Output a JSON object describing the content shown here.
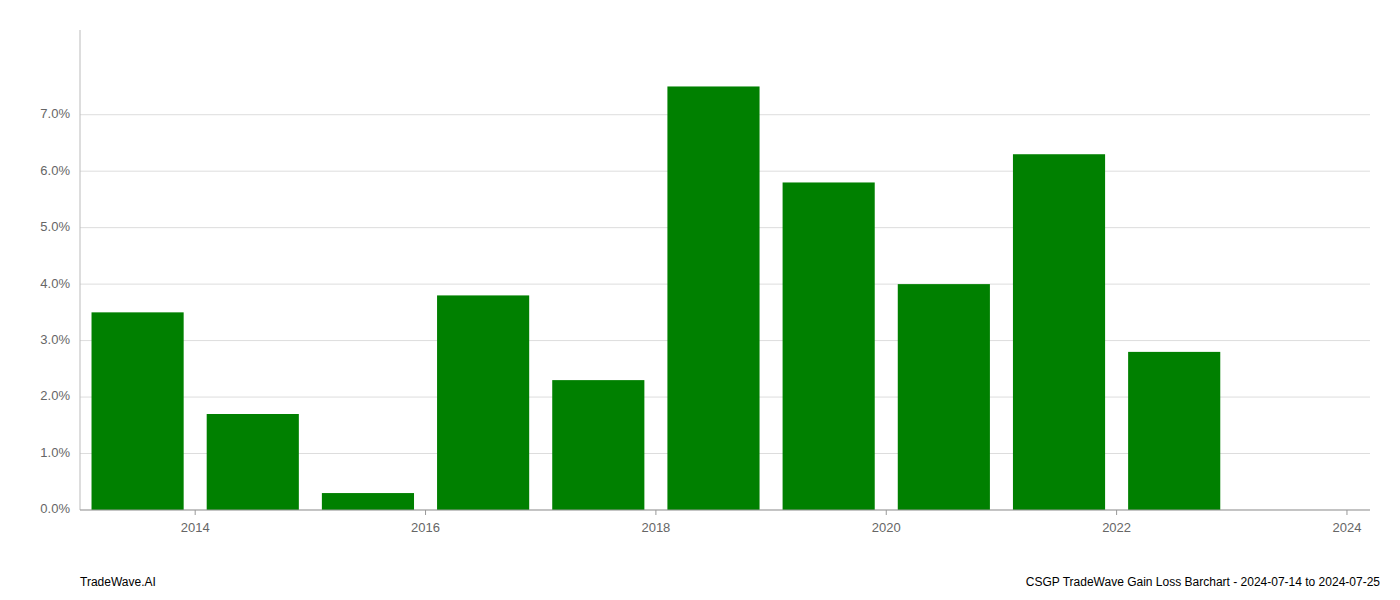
{
  "chart_data": {
    "type": "bar",
    "x": [
      2013.5,
      2014.5,
      2015.5,
      2016.5,
      2017.5,
      2018.5,
      2019.5,
      2020.5,
      2021.5,
      2022.5,
      2023.5
    ],
    "values": [
      0.035,
      0.017,
      0.003,
      0.038,
      0.023,
      0.075,
      0.058,
      0.04,
      0.063,
      0.028,
      0.0
    ],
    "color": "#008000",
    "xlim": [
      2013.0,
      2024.2
    ],
    "xticks": [
      2014,
      2016,
      2018,
      2020,
      2022,
      2024
    ],
    "ylim": [
      0,
      0.085
    ],
    "yticks": [
      {
        "value": 0.0,
        "label": "0.0%"
      },
      {
        "value": 0.01,
        "label": "1.0%"
      },
      {
        "value": 0.02,
        "label": "2.0%"
      },
      {
        "value": 0.03,
        "label": "3.0%"
      },
      {
        "value": 0.04,
        "label": "4.0%"
      },
      {
        "value": 0.05,
        "label": "5.0%"
      },
      {
        "value": 0.06,
        "label": "6.0%"
      },
      {
        "value": 0.07,
        "label": "7.0%"
      }
    ],
    "grid": true,
    "annotations": [
      "TradeWave.AI",
      "CSGP TradeWave Gain Loss Barchart - 2024-07-14 to 2024-07-25"
    ]
  }
}
